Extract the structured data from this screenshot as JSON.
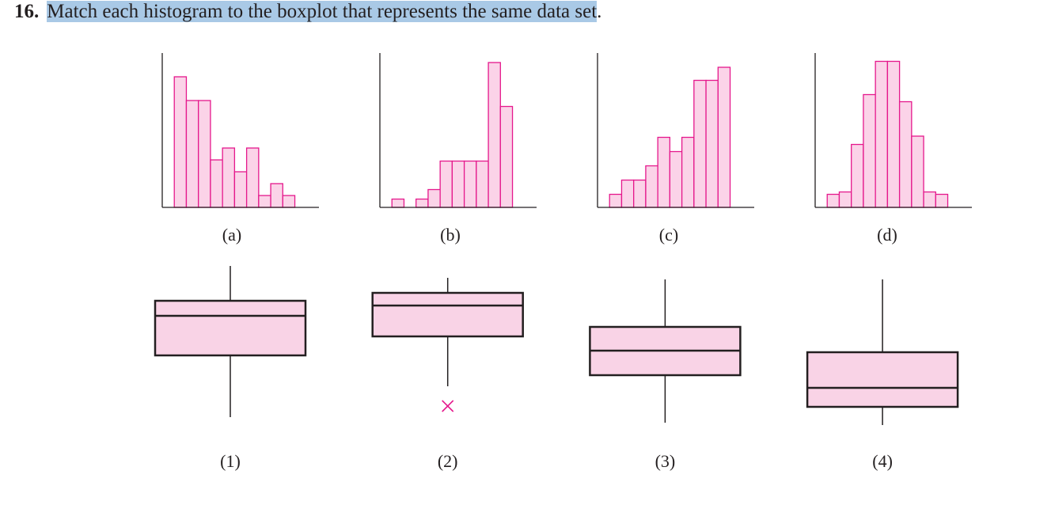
{
  "question": {
    "number": "16.",
    "text": "Match each histogram to the boxplot that represents the same data set",
    "end": "."
  },
  "chart_data": [
    {
      "type": "histogram",
      "label": "(a)",
      "bins": [
        1,
        2,
        3,
        4,
        5,
        6,
        7,
        8,
        9,
        10,
        11
      ],
      "counts": [
        11,
        9,
        9,
        4,
        5,
        3,
        5,
        1,
        2,
        1
      ],
      "xlim": [
        0,
        13
      ],
      "ylim": [
        0,
        13
      ],
      "color": "#fbd3e8",
      "edgecolor": "#e5188c"
    },
    {
      "type": "histogram",
      "label": "(b)",
      "bins": [
        1,
        2,
        3,
        4,
        5,
        6,
        7,
        8,
        9,
        10,
        11
      ],
      "counts": [
        0.7,
        0,
        0.7,
        1.5,
        3.9,
        3.9,
        3.9,
        3.9,
        12.2,
        8.5
      ],
      "xlim": [
        0,
        13
      ],
      "ylim": [
        0,
        13
      ],
      "color": "#fbd3e8",
      "edgecolor": "#e5188c"
    },
    {
      "type": "histogram",
      "label": "(c)",
      "bins": [
        1,
        2,
        3,
        4,
        5,
        6,
        7,
        8,
        9,
        10,
        11
      ],
      "counts": [
        1.1,
        2.3,
        2.3,
        3.5,
        5.9,
        4.7,
        5.9,
        10.7,
        10.7,
        11.8
      ],
      "xlim": [
        0,
        13
      ],
      "ylim": [
        0,
        13
      ],
      "color": "#fbd3e8",
      "edgecolor": "#e5188c"
    },
    {
      "type": "histogram",
      "label": "(d)",
      "bins": [
        1,
        2,
        3,
        4,
        5,
        6,
        7,
        8,
        9,
        10,
        11
      ],
      "counts": [
        1.1,
        1.3,
        5.3,
        9.5,
        12.3,
        12.3,
        8.9,
        6,
        1.3,
        1.1
      ],
      "xlim": [
        0,
        13
      ],
      "ylim": [
        0,
        13
      ],
      "color": "#fbd3e8",
      "edgecolor": "#e5188c"
    },
    {
      "type": "boxplot",
      "label": "(1)",
      "min": 1.8,
      "q1": 9.6,
      "median": 14.6,
      "q3": 16.5,
      "max": 20.9,
      "outliers": [],
      "ylim": [
        0,
        21
      ],
      "color": "#f9d3e6",
      "edgecolor": "#231f20"
    },
    {
      "type": "boxplot",
      "label": "(2)",
      "min": 5.7,
      "q1": 12,
      "median": 15.9,
      "q3": 17.5,
      "max": 19.4,
      "outliers": [
        3.2
      ],
      "ylim": [
        0,
        21
      ],
      "color": "#f9d3e6",
      "edgecolor": "#231f20"
    },
    {
      "type": "boxplot",
      "label": "(3)",
      "min": 1.1,
      "q1": 7.1,
      "median": 10.2,
      "q3": 13.2,
      "max": 19.2,
      "outliers": [],
      "ylim": [
        0,
        21
      ],
      "color": "#f9d3e6",
      "edgecolor": "#231f20"
    },
    {
      "type": "boxplot",
      "label": "(4)",
      "min": 0.8,
      "q1": 3.1,
      "median": 5.5,
      "q3": 10,
      "max": 19.2,
      "outliers": [],
      "ylim": [
        0,
        21
      ],
      "color": "#f9d3e6",
      "edgecolor": "#231f20"
    }
  ]
}
